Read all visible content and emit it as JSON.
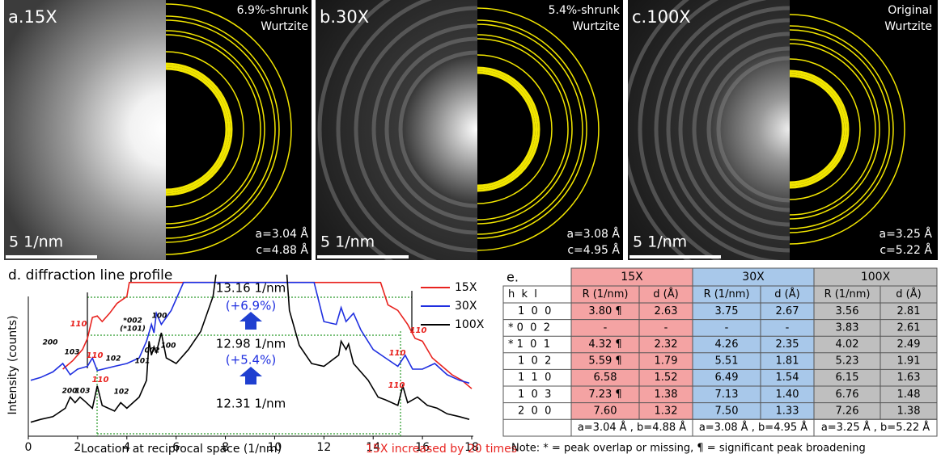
{
  "panels": [
    {
      "label": "a.15X",
      "structure": [
        "6.9%-shrunk",
        "Wurtzite"
      ],
      "lattice": [
        "a=3.04 Å",
        "c=4.88 Å"
      ],
      "scale_bar": "5 1/nm"
    },
    {
      "label": "b.30X",
      "structure": [
        "5.4%-shrunk",
        "Wurtzite"
      ],
      "lattice": [
        "a=3.08 Å",
        "c=4.95 Å"
      ],
      "scale_bar": "5 1/nm"
    },
    {
      "label": "c.100X",
      "structure": [
        "Original",
        "Wurtzite"
      ],
      "lattice": [
        "a=3.25 Å",
        "c=5.22 Å"
      ],
      "scale_bar": "5 1/nm"
    }
  ],
  "chart_data": {
    "type": "line",
    "title": "d. diffraction line profile",
    "x_label": "Location at reciprocal space (1/nm)",
    "y_label": "Intensity (counts)",
    "note": "15X increased by 20 times",
    "note_color": "#e8231f",
    "xlim": [
      0,
      18
    ],
    "xticks": [
      0,
      2,
      4,
      6,
      8,
      10,
      12,
      14,
      16,
      18
    ],
    "ylim": [
      0,
      100
    ],
    "legend": "upper right",
    "series": [
      {
        "name": "15X",
        "color": "#e8231f",
        "x": [
          1.4,
          1.8,
          2.2,
          2.4,
          2.6,
          2.8,
          3.0,
          3.3,
          3.6,
          4.0,
          4.1,
          14.3,
          14.6,
          15.0,
          15.4,
          15.7,
          16.0,
          16.4,
          16.8,
          17.2,
          17.6,
          18.0
        ],
        "values": [
          48,
          54,
          62,
          70,
          85,
          86,
          82,
          88,
          95,
          100,
          110,
          110,
          94,
          90,
          80,
          70,
          68,
          56,
          50,
          44,
          40,
          34
        ]
      },
      {
        "name": "30X",
        "color": "#1f2fe0",
        "x": [
          0.1,
          0.5,
          1.0,
          1.4,
          1.7,
          2.0,
          2.4,
          2.6,
          2.8,
          3.5,
          4.0,
          4.5,
          4.8,
          5.0,
          5.1,
          5.2,
          5.4,
          5.8,
          6.3,
          11.6,
          12.0,
          12.5,
          12.7,
          12.9,
          13.2,
          13.5,
          14.0,
          14.5,
          15.0,
          15.3,
          15.6,
          16.0,
          16.5,
          17.0,
          17.5,
          17.9
        ],
        "values": [
          40,
          42,
          46,
          52,
          44,
          48,
          50,
          56,
          47,
          50,
          52,
          56,
          68,
          80,
          74,
          88,
          80,
          90,
          110,
          110,
          82,
          80,
          92,
          82,
          88,
          76,
          62,
          56,
          50,
          58,
          48,
          48,
          52,
          44,
          40,
          38
        ]
      },
      {
        "name": "100X",
        "color": "#000000",
        "x": [
          0.1,
          0.5,
          1.0,
          1.5,
          1.7,
          1.9,
          2.1,
          2.3,
          2.6,
          2.8,
          3.0,
          3.5,
          3.75,
          4.0,
          4.5,
          4.8,
          4.9,
          5.0,
          5.1,
          5.2,
          5.4,
          5.6,
          6.0,
          6.5,
          7.0,
          7.5,
          7.8,
          10.4,
          10.6,
          11.0,
          11.5,
          12.0,
          12.6,
          12.7,
          12.9,
          13.0,
          13.2,
          13.8,
          14.2,
          14.5,
          15.0,
          15.2,
          15.4,
          15.8,
          16.2,
          16.6,
          17.0,
          17.5,
          17.9
        ],
        "values": [
          10,
          12,
          14,
          20,
          28,
          24,
          28,
          25,
          20,
          36,
          22,
          18,
          24,
          20,
          28,
          40,
          68,
          58,
          64,
          60,
          74,
          56,
          52,
          62,
          75,
          100,
          140,
          140,
          90,
          65,
          52,
          50,
          58,
          68,
          62,
          66,
          52,
          40,
          28,
          26,
          22,
          36,
          24,
          28,
          22,
          20,
          16,
          14,
          12
        ]
      }
    ],
    "annotations": [
      {
        "text": "13.16 1/nm",
        "color": "#000000"
      },
      {
        "text": "(+6.9%)",
        "color": "#1f2fe0"
      },
      {
        "text": "12.98 1/nm",
        "color": "#000000"
      },
      {
        "text": "(+5.4%)",
        "color": "#1f2fe0"
      },
      {
        "text": "12.31 1/nm",
        "color": "#000000"
      },
      {
        "text": "110",
        "color": "#e8231f"
      },
      {
        "text": "110",
        "color": "#e8231f"
      },
      {
        "text": "110",
        "color": "#e8231f"
      },
      {
        "text": "110",
        "color": "#e8231f"
      },
      {
        "text": "110",
        "color": "#e8231f"
      },
      {
        "text": "110",
        "color": "#e8231f"
      },
      {
        "text": "200",
        "color": "#000000"
      },
      {
        "text": "103",
        "color": "#000000"
      },
      {
        "text": "*002",
        "color": "#000000"
      },
      {
        "text": "(*101)",
        "color": "#000000"
      },
      {
        "text": "100",
        "color": "#000000"
      },
      {
        "text": "102",
        "color": "#000000"
      },
      {
        "text": "101",
        "color": "#000000"
      },
      {
        "text": "002",
        "color": "#000000"
      },
      {
        "text": "100",
        "color": "#000000"
      },
      {
        "text": "200",
        "color": "#000000"
      },
      {
        "text": "103",
        "color": "#000000"
      },
      {
        "text": "102",
        "color": "#000000"
      }
    ]
  },
  "table": {
    "label": "e.",
    "groups": [
      {
        "name": "15X",
        "color": "#f4a3a3"
      },
      {
        "name": "30X",
        "color": "#a8c8ea"
      },
      {
        "name": "100X",
        "color": "#bfbfbf"
      }
    ],
    "header": [
      "h  k  l",
      "R (1/nm)",
      "d (Å)",
      "R (1/nm)",
      "d (Å)",
      "R (1/nm)",
      "d (Å)"
    ],
    "rows": [
      [
        "1  0  0",
        "3.80 ¶",
        "2.63",
        "3.75",
        "2.67",
        "3.56",
        "2.81"
      ],
      [
        "* 0  0  2",
        "-",
        "-",
        "-",
        "-",
        "3.83",
        "2.61"
      ],
      [
        "* 1  0  1",
        "4.32 ¶",
        "2.32",
        "4.26",
        "2.35",
        "4.02",
        "2.49"
      ],
      [
        "1  0  2",
        "5.59 ¶",
        "1.79",
        "5.51",
        "1.81",
        "5.23",
        "1.91"
      ],
      [
        "1  1  0",
        "6.58",
        "1.52",
        "6.49",
        "1.54",
        "6.15",
        "1.63"
      ],
      [
        "1  0  3",
        "7.23 ¶",
        "1.38",
        "7.13",
        "1.40",
        "6.76",
        "1.48"
      ],
      [
        "2  0  0",
        "7.60",
        "1.32",
        "7.50",
        "1.33",
        "7.26",
        "1.38"
      ]
    ],
    "footer": [
      "a=3.04 Å , b=4.88 Å",
      "a=3.08 Å , b=4.95 Å",
      "a=3.25 Å , b=5.22 Å"
    ],
    "note": "Note: * = peak overlap or missing, ¶ = significant peak broadening"
  }
}
